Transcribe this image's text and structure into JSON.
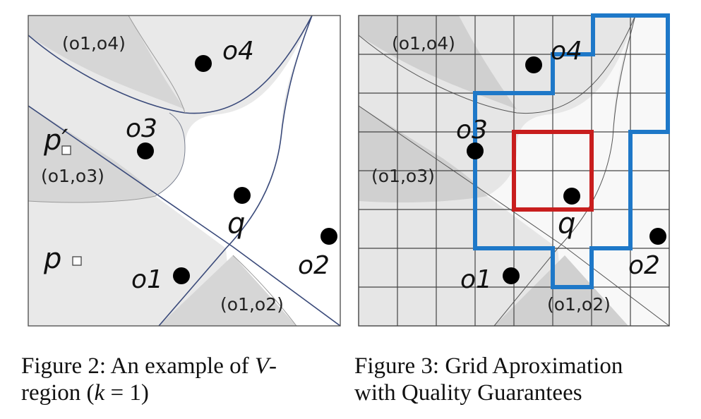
{
  "figure2": {
    "region_labels": {
      "o1_o4": "(o1,o4)",
      "o1_o3": "(o1,o3)",
      "o1_o2": "(o1,o2)"
    },
    "points": {
      "o1": "o1",
      "o2": "o2",
      "o3": "o3",
      "o4": "o4",
      "q": "q",
      "p": "p",
      "p_prime": "p′"
    },
    "caption": {
      "prefix": "Figure 2: An example of ",
      "italic_v": "V",
      "suffix": "-",
      "line2_prefix": "region (",
      "line2_italic": "k",
      "line2_suffix": " = 1)"
    }
  },
  "figure3": {
    "region_labels": {
      "o1_o4": "(o1,o4)",
      "o1_o3": "(o1,o3)",
      "o1_o2": "(o1,o2)"
    },
    "points": {
      "o1": "o1",
      "o2": "o2",
      "o3": "o3",
      "o4": "o4",
      "q": "q"
    },
    "caption": {
      "line1": "Figure 3: Grid Aproximation",
      "line2": "with Quality Guarantees"
    }
  },
  "colors": {
    "outline_blue": "#1e78c8",
    "outline_red": "#c81e1e",
    "light_region": "#ececec",
    "dark_region": "#d2d2d2",
    "boundary": "#3a4a7a"
  }
}
